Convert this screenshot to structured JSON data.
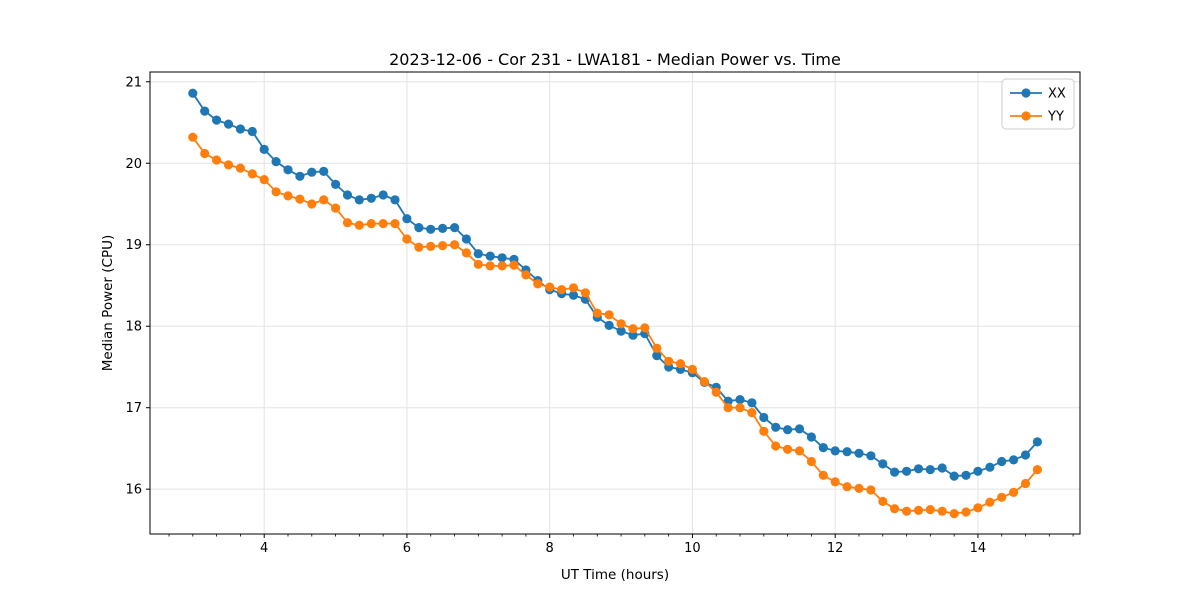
{
  "chart_data": {
    "type": "line",
    "title": "2023-12-06 - Cor 231 - LWA181 - Median Power vs. Time",
    "xlabel": "UT Time (hours)",
    "ylabel": "Median Power (CPU)",
    "xlim": [
      2.4,
      15.43
    ],
    "ylim": [
      15.45,
      21.12
    ],
    "xticks": [
      4,
      6,
      8,
      10,
      12,
      14
    ],
    "yticks": [
      16,
      17,
      18,
      19,
      20,
      21
    ],
    "x_minor_tick_step": 0.33333,
    "grid": true,
    "grid_color": "#e3e3e3",
    "legend_position": "upper right",
    "x": [
      3.0,
      3.167,
      3.333,
      3.5,
      3.667,
      3.833,
      4.0,
      4.167,
      4.333,
      4.5,
      4.667,
      4.833,
      5.0,
      5.167,
      5.333,
      5.5,
      5.667,
      5.833,
      6.0,
      6.167,
      6.333,
      6.5,
      6.667,
      6.833,
      7.0,
      7.167,
      7.333,
      7.5,
      7.667,
      7.833,
      8.0,
      8.167,
      8.333,
      8.5,
      8.667,
      8.833,
      9.0,
      9.167,
      9.333,
      9.5,
      9.667,
      9.833,
      10.0,
      10.167,
      10.333,
      10.5,
      10.667,
      10.833,
      11.0,
      11.167,
      11.333,
      11.5,
      11.667,
      11.833,
      12.0,
      12.167,
      12.333,
      12.5,
      12.667,
      12.833,
      13.0,
      13.167,
      13.333,
      13.5,
      13.667,
      13.833,
      14.0,
      14.167,
      14.333,
      14.5,
      14.667,
      14.833
    ],
    "series": [
      {
        "name": "XX",
        "color": "#1f77b4",
        "marker": "circle",
        "values": [
          20.86,
          20.64,
          20.53,
          20.48,
          20.42,
          20.39,
          20.17,
          20.02,
          19.92,
          19.84,
          19.89,
          19.9,
          19.74,
          19.61,
          19.55,
          19.57,
          19.61,
          19.55,
          19.32,
          19.21,
          19.19,
          19.2,
          19.21,
          19.07,
          18.89,
          18.86,
          18.84,
          18.82,
          18.69,
          18.56,
          18.45,
          18.4,
          18.38,
          18.33,
          18.11,
          18.01,
          17.94,
          17.89,
          17.91,
          17.64,
          17.5,
          17.47,
          17.43,
          17.31,
          17.25,
          17.08,
          17.1,
          17.06,
          16.88,
          16.76,
          16.73,
          16.74,
          16.64,
          16.51,
          16.47,
          16.46,
          16.44,
          16.41,
          16.31,
          16.21,
          16.22,
          16.25,
          16.24,
          16.26,
          16.16,
          16.17,
          16.22,
          16.27,
          16.34,
          16.36,
          16.42,
          16.58
        ]
      },
      {
        "name": "YY",
        "color": "#ff7f0e",
        "marker": "circle",
        "values": [
          20.32,
          20.12,
          20.04,
          19.98,
          19.94,
          19.87,
          19.8,
          19.65,
          19.6,
          19.56,
          19.5,
          19.55,
          19.45,
          19.27,
          19.24,
          19.26,
          19.26,
          19.26,
          19.07,
          18.97,
          18.98,
          18.99,
          19.0,
          18.9,
          18.76,
          18.74,
          18.74,
          18.75,
          18.63,
          18.52,
          18.48,
          18.45,
          18.47,
          18.41,
          18.16,
          18.14,
          18.03,
          17.97,
          17.98,
          17.73,
          17.57,
          17.54,
          17.47,
          17.32,
          17.19,
          17.0,
          17.0,
          16.94,
          16.71,
          16.53,
          16.49,
          16.47,
          16.34,
          16.17,
          16.09,
          16.03,
          16.01,
          15.99,
          15.85,
          15.76,
          15.73,
          15.74,
          15.75,
          15.73,
          15.7,
          15.72,
          15.77,
          15.84,
          15.9,
          15.96,
          16.07,
          16.24
        ]
      }
    ]
  }
}
